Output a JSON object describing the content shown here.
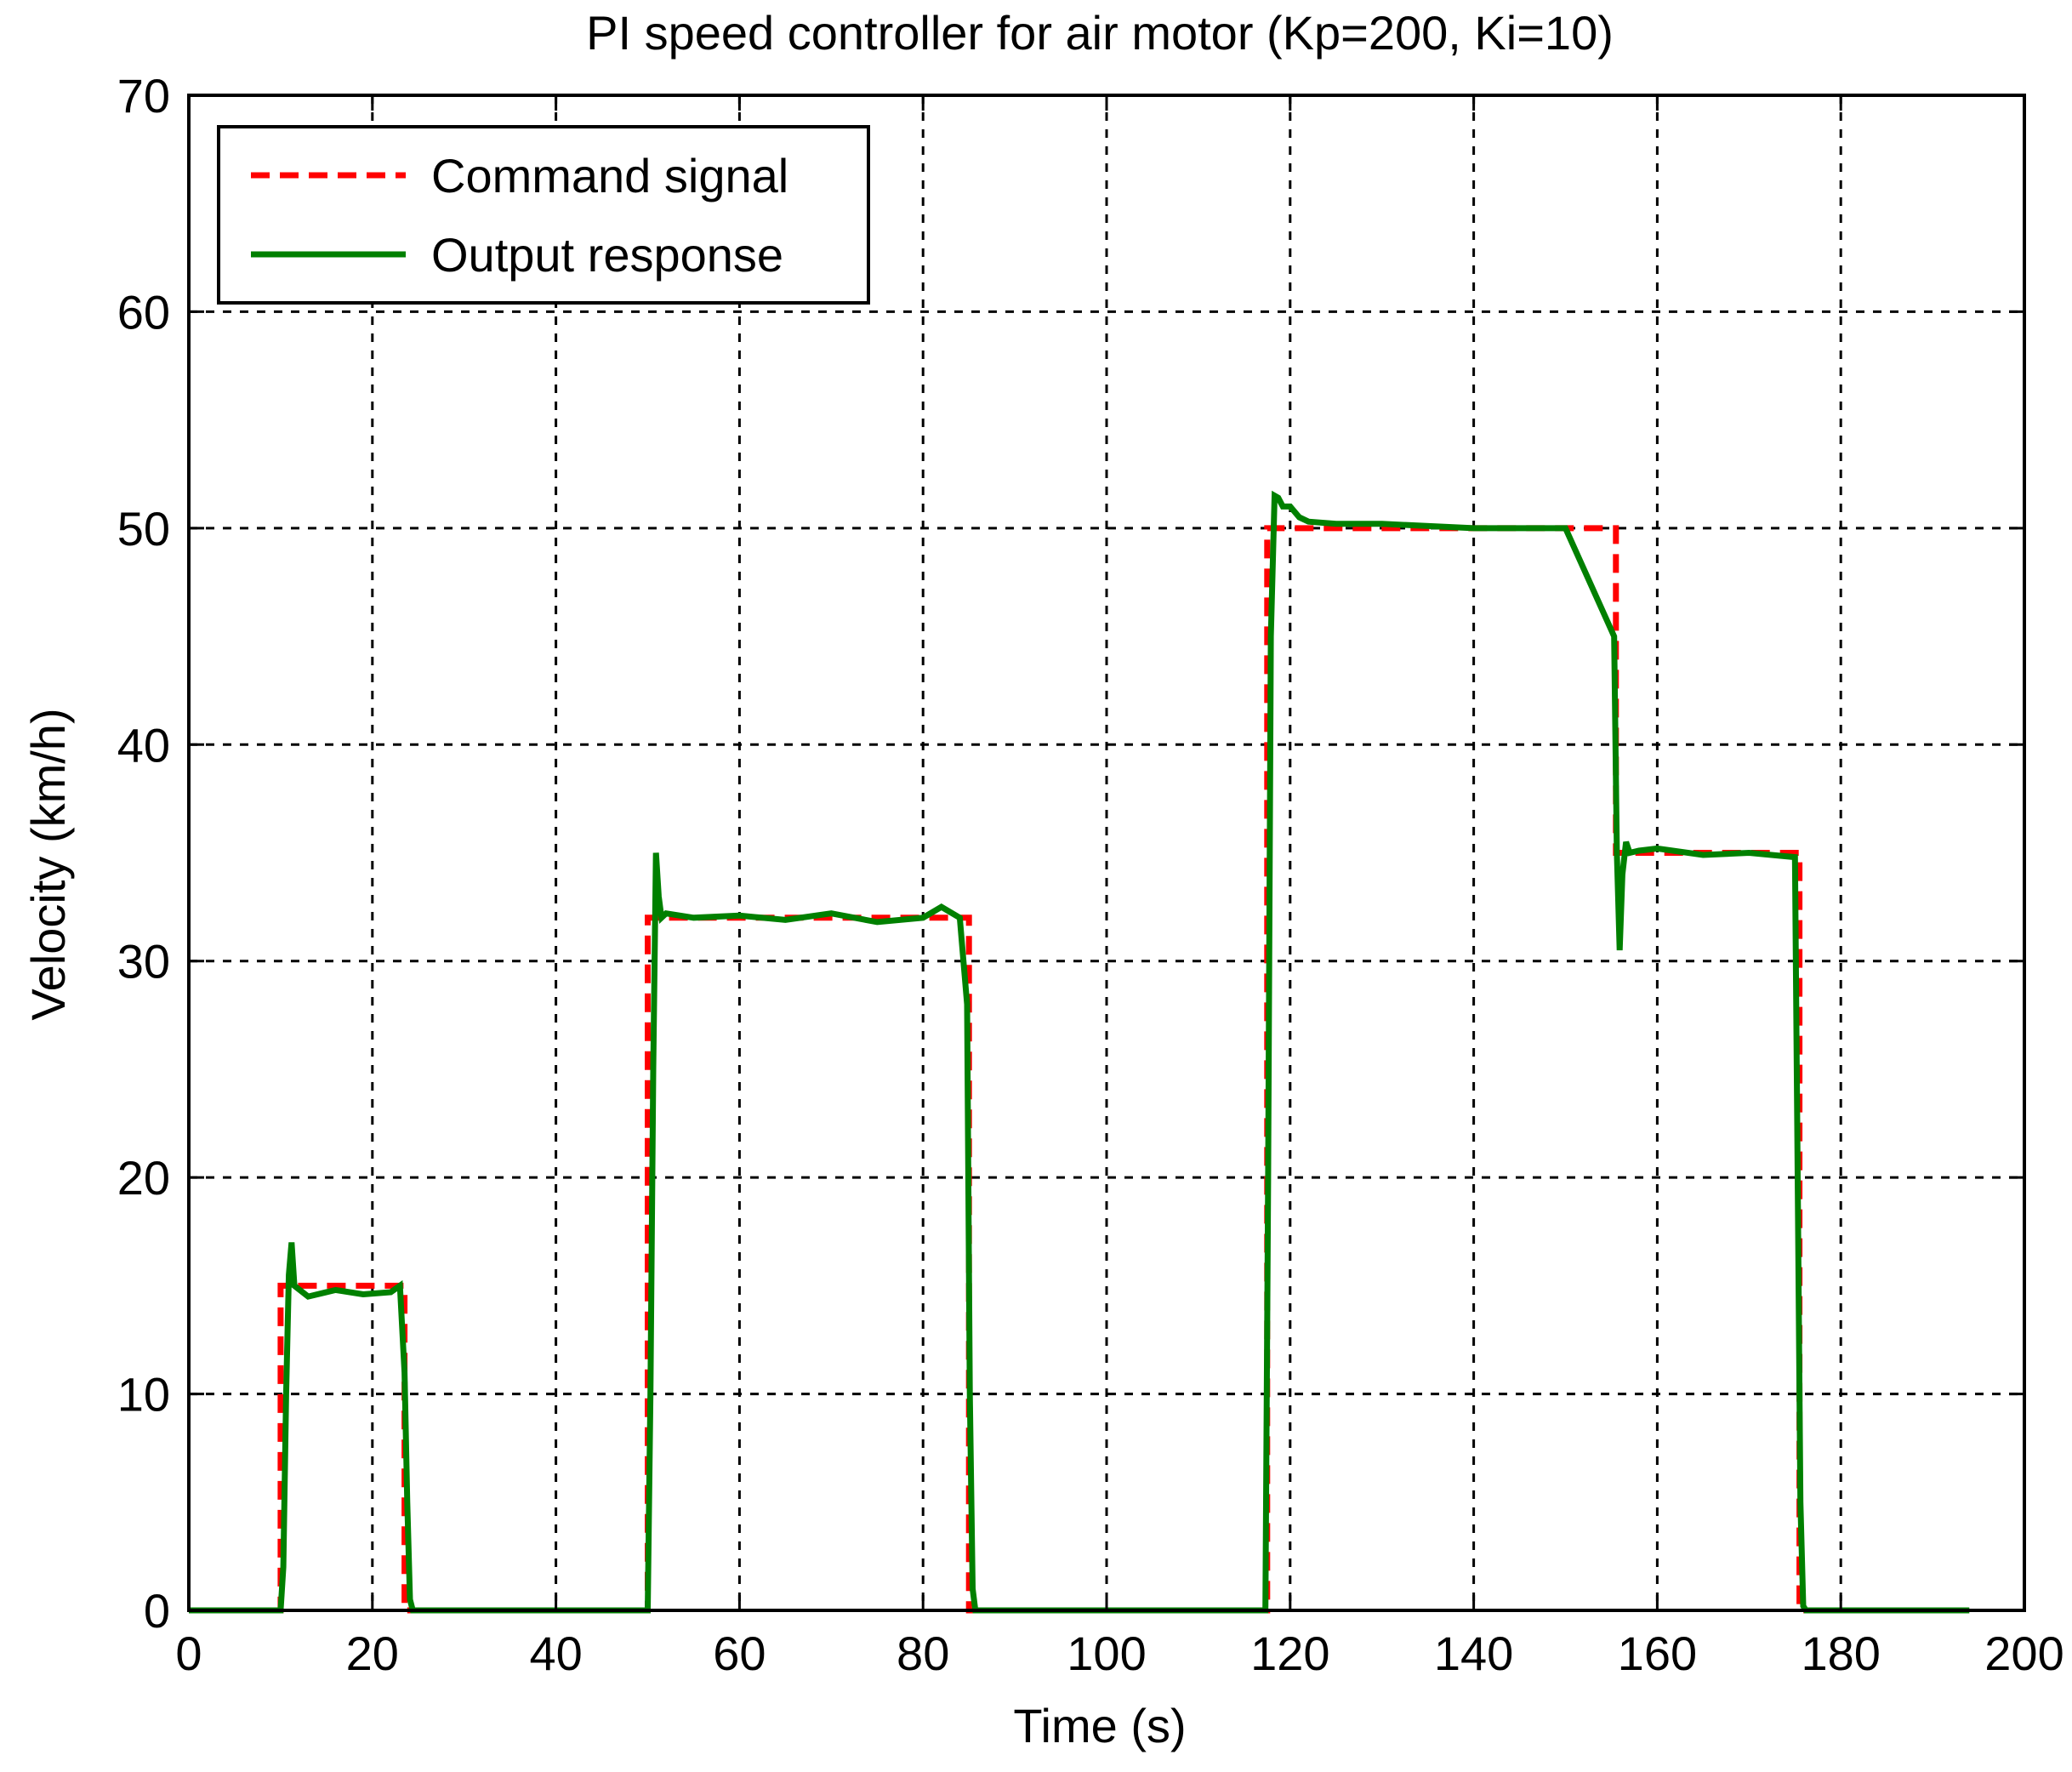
{
  "chart_data": {
    "type": "line",
    "title": "PI speed controller for air motor (Kp=200, Ki=10)",
    "xlabel": "Time (s)",
    "ylabel": "Velocity (km/h)",
    "xlim": [
      0,
      200
    ],
    "ylim": [
      0,
      70
    ],
    "xticks": [
      0,
      20,
      40,
      60,
      80,
      100,
      120,
      140,
      160,
      180,
      200
    ],
    "yticks": [
      0,
      10,
      20,
      30,
      40,
      50,
      60,
      70
    ],
    "grid": true,
    "legend_position": "top-left",
    "series": [
      {
        "name": "Command signal",
        "color": "#ff0000",
        "style": "dashed",
        "x": [
          0,
          10,
          10,
          23.5,
          23.5,
          50,
          50,
          85,
          85,
          117.5,
          117.5,
          155.5,
          155.5,
          175.5,
          175.5,
          194
        ],
        "y": [
          0,
          0,
          15,
          15,
          0,
          0,
          32,
          32,
          0,
          0,
          50,
          50,
          35,
          35,
          0,
          0
        ]
      },
      {
        "name": "Output response",
        "color": "#008000",
        "style": "solid",
        "x": [
          0,
          10,
          10.3,
          10.6,
          10.9,
          11.2,
          11.5,
          13,
          16,
          19,
          22,
          23,
          23.5,
          23.8,
          24.1,
          24.4,
          50,
          50.3,
          50.6,
          50.9,
          51.2,
          51.5,
          52,
          55,
          60,
          65,
          70,
          75,
          80,
          82,
          84,
          84.8,
          85.1,
          85.4,
          85.7,
          117.3,
          117.6,
          117.9,
          118.3,
          118.7,
          119.2,
          120,
          121,
          122,
          125,
          130,
          140,
          150,
          155.3,
          155.6,
          155.9,
          156.2,
          156.6,
          157,
          158,
          160,
          165,
          170,
          175,
          175.3,
          175.6,
          175.9,
          176.2,
          194
        ],
        "y": [
          0,
          0,
          2,
          10,
          15.5,
          17,
          15,
          14.5,
          14.8,
          14.6,
          14.7,
          15,
          11,
          5,
          0.5,
          0,
          0,
          10,
          25,
          35,
          33,
          32,
          32.2,
          32,
          32.1,
          31.9,
          32.2,
          31.8,
          32,
          32.5,
          32,
          28,
          10,
          1,
          0,
          0,
          20,
          45,
          51.5,
          51.4,
          51,
          51,
          50.5,
          50.3,
          50.2,
          50.2,
          50,
          50,
          45,
          35,
          30.5,
          34,
          35.5,
          35,
          35.1,
          35.2,
          34.9,
          35,
          34.8,
          20,
          5,
          0.2,
          0,
          0
        ]
      }
    ]
  }
}
